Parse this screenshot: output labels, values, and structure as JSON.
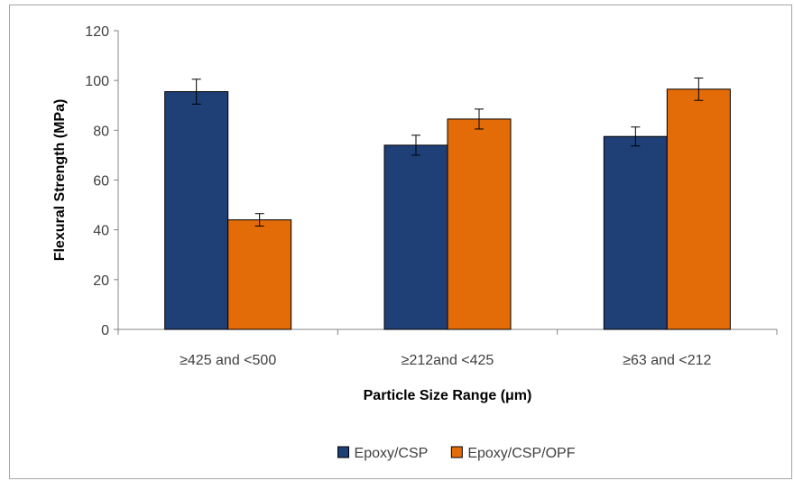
{
  "chart_data": {
    "type": "bar",
    "title": "",
    "xlabel": "Particle Size Range (μm)",
    "ylabel": "Flexural Strength (MPa)",
    "ylim": [
      0,
      120
    ],
    "yticks": [
      "0",
      "20",
      "40",
      "60",
      "80",
      "100",
      "120"
    ],
    "grid": false,
    "legend_position": "bottom",
    "categories": [
      "≥425 and <500",
      "≥212and <425",
      "≥63 and <212"
    ],
    "series": [
      {
        "name": "Epoxy/CSP",
        "color": "#1f3f77",
        "values": [
          95.5,
          74,
          77.5
        ],
        "errors": [
          5,
          4,
          3.8
        ]
      },
      {
        "name": "Epoxy/CSP/OPF",
        "color": "#e36c09",
        "values": [
          44,
          84.5,
          96.5
        ],
        "errors": [
          2.5,
          4,
          4.5
        ]
      }
    ]
  }
}
